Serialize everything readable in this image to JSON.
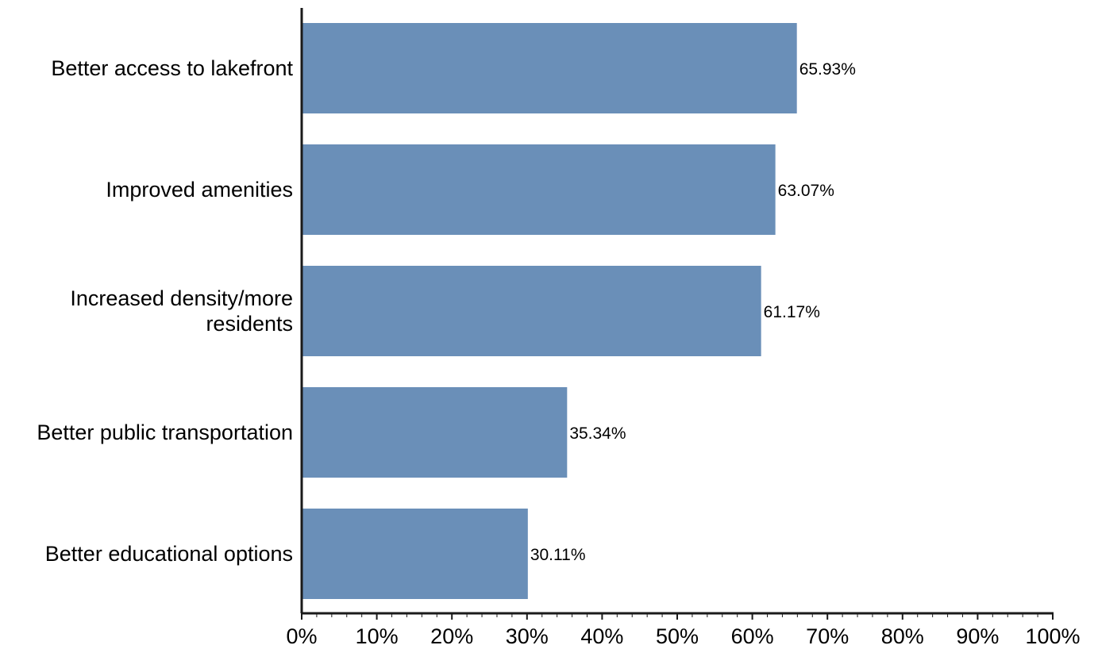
{
  "chart_data": {
    "type": "bar",
    "orientation": "horizontal",
    "title": "",
    "xlabel": "",
    "ylabel": "",
    "categories": [
      [
        "Better access to lakefront"
      ],
      [
        "Improved amenities"
      ],
      [
        "Increased density/more",
        "residents"
      ],
      [
        "Better public transportation"
      ],
      [
        "Better educational options"
      ]
    ],
    "values": [
      65.93,
      63.07,
      61.17,
      35.34,
      30.11
    ],
    "data_labels": [
      "65.93%",
      "63.07%",
      "61.17%",
      "35.34%",
      "30.11%"
    ],
    "xlim": [
      0,
      100
    ],
    "xticks": [
      0,
      10,
      20,
      30,
      40,
      50,
      60,
      70,
      80,
      90,
      100
    ],
    "xtick_labels": [
      "0%",
      "10%",
      "20%",
      "30%",
      "40%",
      "50%",
      "60%",
      "70%",
      "80%",
      "90%",
      "100%"
    ],
    "grid": false,
    "legend": "none",
    "colors": {
      "bar": "#6a8fb8",
      "axis": "#1a1a1a",
      "text": "#000000"
    }
  }
}
